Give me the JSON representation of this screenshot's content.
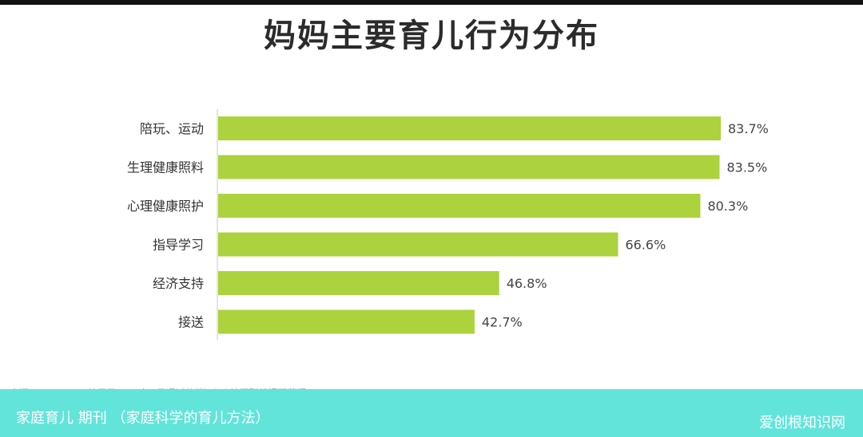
{
  "chart_data": {
    "type": "bar",
    "orientation": "horizontal",
    "title": "妈妈主要育儿行为分布",
    "categories": [
      "陪玩、运动",
      "生理健康照料",
      "心理健康照护",
      "指导学习",
      "经济支持",
      "接送"
    ],
    "values": [
      83.7,
      83.5,
      80.3,
      66.6,
      46.8,
      42.7
    ],
    "value_labels": [
      "83.7%",
      "83.5%",
      "80.3%",
      "66.6%",
      "46.8%",
      "42.7%"
    ],
    "xlim": [
      0,
      100
    ],
    "grid": false,
    "bar_color": "#acd23d"
  },
  "source_note": "来源：N=1100，结果于2022年9月通过艾瑞iClick社区联机调研获得",
  "caption": "家庭育儿 期刊 （家庭科学的育儿方法）",
  "watermark": "爱创根知识网"
}
